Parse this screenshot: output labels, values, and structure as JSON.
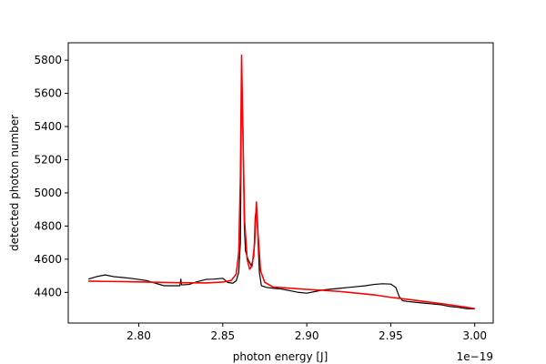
{
  "chart_data": {
    "type": "line",
    "xlabel": "photon energy [J]",
    "ylabel": "detected photon number",
    "x_offset_label": "1e−19",
    "xlim": [
      2.758,
      3.011
    ],
    "ylim": [
      4215,
      5905
    ],
    "xticks": [
      2.8,
      2.85,
      2.9,
      2.95,
      3.0
    ],
    "xtick_labels": [
      "2.80",
      "2.85",
      "2.90",
      "2.95",
      "3.00"
    ],
    "yticks": [
      4400,
      4600,
      4800,
      5000,
      5200,
      5400,
      5600,
      5800
    ],
    "ytick_labels": [
      "4400",
      "4600",
      "4800",
      "5000",
      "5200",
      "5400",
      "5600",
      "5800"
    ],
    "grid": false,
    "series": [
      {
        "color": "#000000",
        "points": [
          [
            2.77,
            4480
          ],
          [
            2.775,
            4495
          ],
          [
            2.78,
            4505
          ],
          [
            2.785,
            4495
          ],
          [
            2.79,
            4490
          ],
          [
            2.795,
            4485
          ],
          [
            2.8,
            4478
          ],
          [
            2.805,
            4470
          ],
          [
            2.81,
            4455
          ],
          [
            2.815,
            4440
          ],
          [
            2.82,
            4440
          ],
          [
            2.8245,
            4440
          ],
          [
            2.825,
            4480
          ],
          [
            2.8255,
            4445
          ],
          [
            2.83,
            4448
          ],
          [
            2.835,
            4465
          ],
          [
            2.84,
            4478
          ],
          [
            2.845,
            4480
          ],
          [
            2.85,
            4485
          ],
          [
            2.853,
            4460
          ],
          [
            2.856,
            4455
          ],
          [
            2.858,
            4470
          ],
          [
            2.8595,
            4520
          ],
          [
            2.8605,
            4700
          ],
          [
            2.8612,
            5700
          ],
          [
            2.862,
            5400
          ],
          [
            2.8628,
            4800
          ],
          [
            2.8635,
            4650
          ],
          [
            2.865,
            4600
          ],
          [
            2.867,
            4560
          ],
          [
            2.8685,
            4620
          ],
          [
            2.8693,
            4850
          ],
          [
            2.87,
            4910
          ],
          [
            2.8708,
            4760
          ],
          [
            2.8718,
            4520
          ],
          [
            2.873,
            4440
          ],
          [
            2.876,
            4430
          ],
          [
            2.88,
            4425
          ],
          [
            2.885,
            4420
          ],
          [
            2.89,
            4410
          ],
          [
            2.895,
            4400
          ],
          [
            2.9,
            4395
          ],
          [
            2.905,
            4405
          ],
          [
            2.91,
            4415
          ],
          [
            2.915,
            4420
          ],
          [
            2.92,
            4425
          ],
          [
            2.925,
            4430
          ],
          [
            2.93,
            4435
          ],
          [
            2.935,
            4440
          ],
          [
            2.94,
            4448
          ],
          [
            2.945,
            4452
          ],
          [
            2.95,
            4450
          ],
          [
            2.953,
            4430
          ],
          [
            2.955,
            4375
          ],
          [
            2.957,
            4350
          ],
          [
            2.96,
            4345
          ],
          [
            2.965,
            4340
          ],
          [
            2.97,
            4335
          ],
          [
            2.975,
            4330
          ],
          [
            2.98,
            4325
          ],
          [
            2.985,
            4315
          ],
          [
            2.99,
            4310
          ],
          [
            2.995,
            4302
          ],
          [
            3.0,
            4300
          ]
        ]
      },
      {
        "color": "#ff0000",
        "points": [
          [
            2.77,
            4468
          ],
          [
            2.78,
            4466
          ],
          [
            2.79,
            4465
          ],
          [
            2.8,
            4463
          ],
          [
            2.81,
            4461
          ],
          [
            2.82,
            4459
          ],
          [
            2.83,
            4458
          ],
          [
            2.84,
            4457
          ],
          [
            2.85,
            4462
          ],
          [
            2.855,
            4472
          ],
          [
            2.858,
            4510
          ],
          [
            2.8595,
            4640
          ],
          [
            2.8605,
            5100
          ],
          [
            2.8612,
            5830
          ],
          [
            2.862,
            5350
          ],
          [
            2.863,
            4830
          ],
          [
            2.8645,
            4600
          ],
          [
            2.866,
            4540
          ],
          [
            2.8675,
            4560
          ],
          [
            2.869,
            4700
          ],
          [
            2.87,
            4945
          ],
          [
            2.871,
            4750
          ],
          [
            2.8725,
            4530
          ],
          [
            2.875,
            4460
          ],
          [
            2.88,
            4432
          ],
          [
            2.89,
            4425
          ],
          [
            2.9,
            4418
          ],
          [
            2.91,
            4412
          ],
          [
            2.92,
            4405
          ],
          [
            2.93,
            4395
          ],
          [
            2.94,
            4385
          ],
          [
            2.95,
            4370
          ],
          [
            2.96,
            4358
          ],
          [
            2.97,
            4345
          ],
          [
            2.98,
            4332
          ],
          [
            2.99,
            4318
          ],
          [
            3.0,
            4302
          ]
        ]
      }
    ]
  }
}
